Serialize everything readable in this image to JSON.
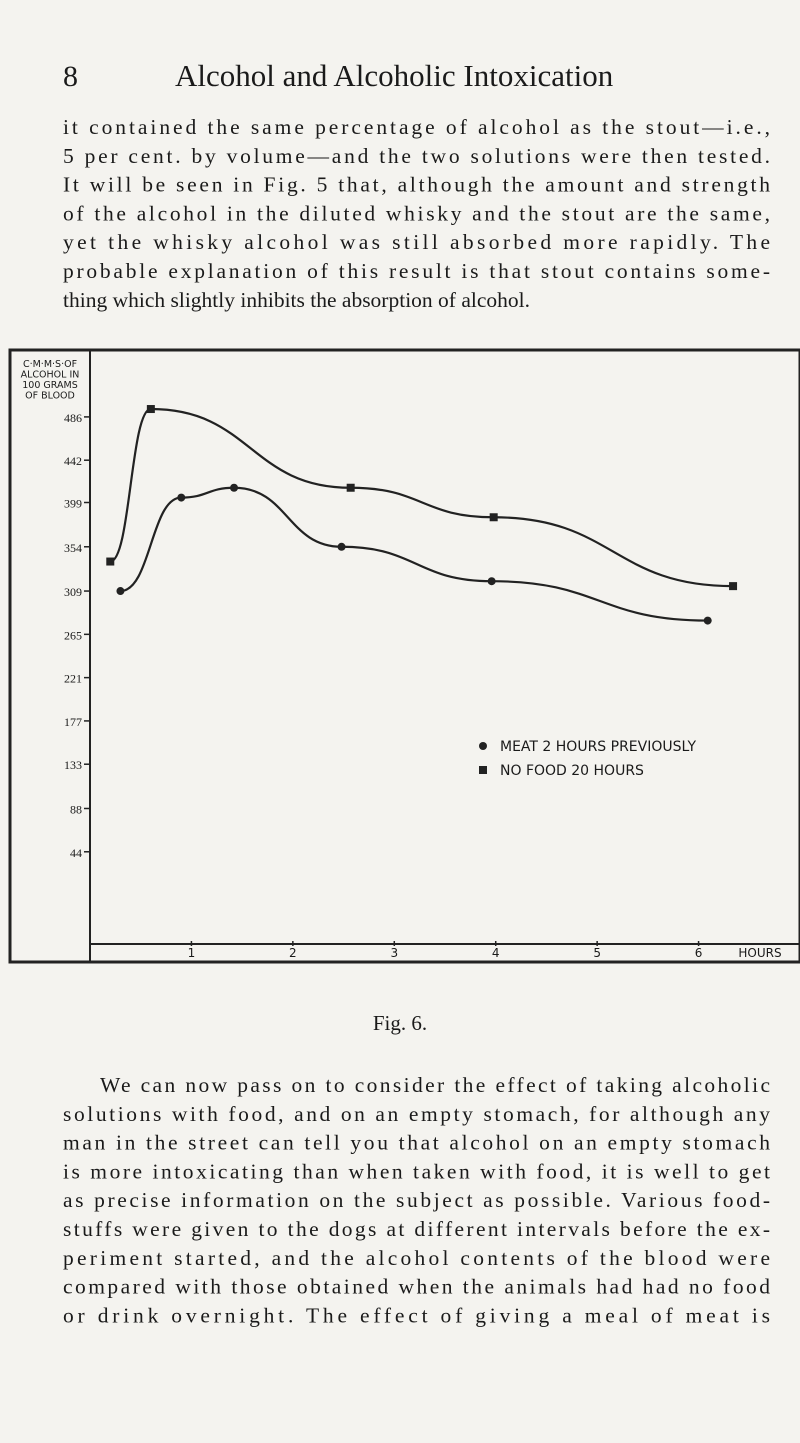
{
  "header": {
    "page_number": "8",
    "title": "Alcohol and Alcoholic Intoxication"
  },
  "paragraphs": [
    [
      "it contained the same percentage of alcohol as the stout—i.e.,",
      "5 per cent. by volume—and the two solutions were then tested.",
      "It will be seen in Fig. 5 that, although the amount and strength",
      "of the alcohol in the diluted whisky and the stout are the same,",
      "yet the whisky alcohol was still absorbed more rapidly. The",
      "probable explanation of this result is that stout contains some-",
      "thing which slightly inhibits the absorption of alcohol."
    ],
    [
      "We can now pass on to consider the effect of taking alcoholic",
      "solutions with food, and on an empty stomach, for although any",
      "man in the street can tell you that alcohol on an empty stomach",
      "is more intoxicating than when taken with food, it is well to get",
      "as precise information on the subject as possible. Various food-",
      "stuffs were given to the dogs at different intervals before the ex-",
      "periment started, and the alcohol contents of the blood were",
      "compared with those obtained when the animals had had no food",
      "or drink overnight. The effect of giving a meal of meat is"
    ]
  ],
  "figure_caption": "Fig. 6.",
  "chart_data": {
    "type": "line",
    "y_label": [
      "C·M·M·S·OF",
      "ALCOHOL IN",
      "100 GRAMS",
      "OF BLOOD"
    ],
    "x_label": "HOURS",
    "xlim": [
      0,
      7
    ],
    "xticks": [
      1,
      2,
      3,
      4,
      5,
      6
    ],
    "ylim": [
      -66,
      554
    ],
    "yticks": [
      44,
      88,
      133,
      177,
      221,
      265,
      309,
      354,
      399,
      442,
      486
    ],
    "series": [
      {
        "name": "MEAT 2 HOURS PREVIOUSLY",
        "color": "#222222",
        "marker": "circle",
        "x": [
          0.3,
          0.9,
          1.42,
          2.48,
          3.96,
          6.09
        ],
        "values": [
          309,
          404,
          414,
          354,
          319,
          279
        ]
      },
      {
        "name": "NO FOOD 20 HOURS",
        "color": "#222222",
        "marker": "square",
        "x": [
          0.2,
          0.6,
          2.57,
          3.98,
          6.34
        ],
        "values": [
          339,
          494,
          414,
          384,
          314
        ]
      }
    ]
  }
}
